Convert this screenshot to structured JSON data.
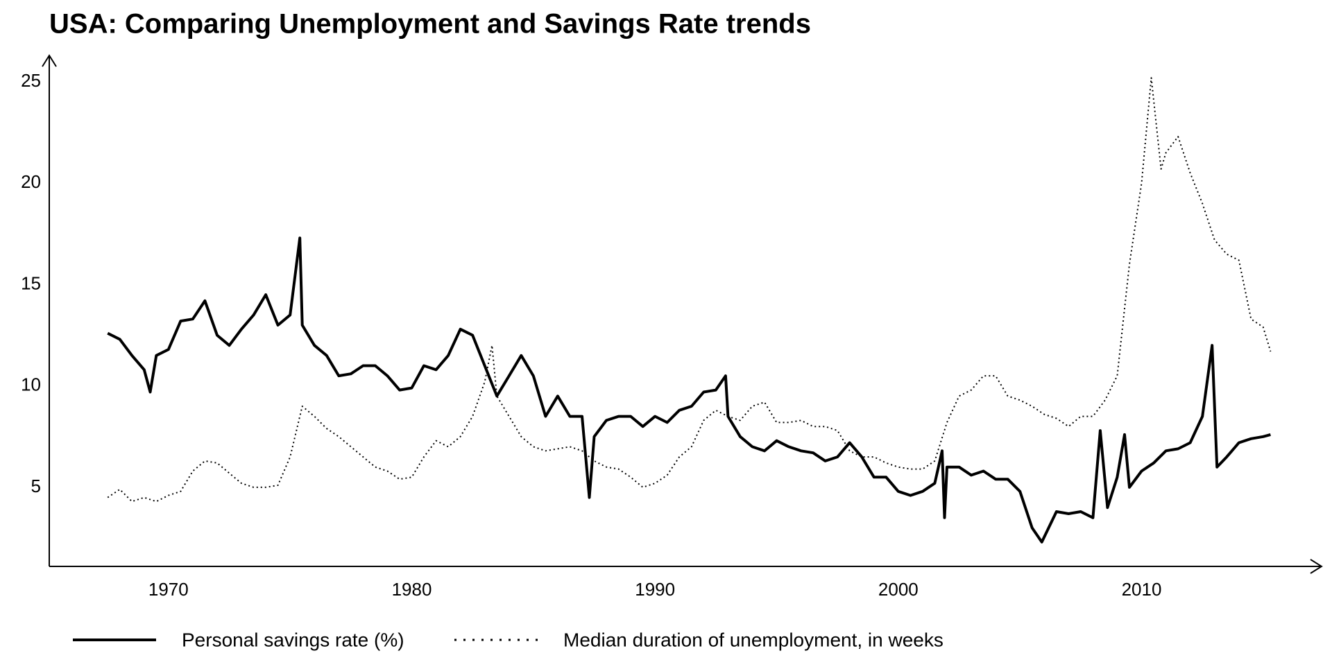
{
  "chart_data": {
    "type": "line",
    "title": "USA: Comparing Unemployment and Savings Rate trends",
    "xlim": [
      1965.1,
      2017.4
    ],
    "xticks": [
      1970,
      1980,
      1990,
      2000,
      2010
    ],
    "ylim": [
      1.1,
      26.3
    ],
    "yticks": [
      5,
      10,
      15,
      20,
      25
    ],
    "grid": false,
    "series": [
      {
        "name": "Personal savings rate (%)",
        "color": "#000000",
        "style": "solid",
        "x": [
          1967.5,
          1968.0,
          1968.5,
          1969.0,
          1969.25,
          1969.5,
          1970.0,
          1970.5,
          1971.0,
          1971.5,
          1972.0,
          1972.5,
          1973.0,
          1973.5,
          1974.0,
          1974.5,
          1975.0,
          1975.4,
          1975.5,
          1976.0,
          1976.5,
          1977.0,
          1977.5,
          1978.0,
          1978.5,
          1979.0,
          1979.5,
          1980.0,
          1980.5,
          1981.0,
          1981.5,
          1982.0,
          1982.5,
          1983.0,
          1983.5,
          1984.0,
          1984.5,
          1985.0,
          1985.5,
          1986.0,
          1986.5,
          1987.0,
          1987.3,
          1987.5,
          1988.0,
          1988.5,
          1989.0,
          1989.5,
          1990.0,
          1990.5,
          1991.0,
          1991.5,
          1992.0,
          1992.5,
          1992.9,
          1993.0,
          1993.5,
          1994.0,
          1994.5,
          1995.0,
          1995.5,
          1996.0,
          1996.5,
          1997.0,
          1997.5,
          1998.0,
          1998.5,
          1999.0,
          1999.5,
          2000.0,
          2000.5,
          2001.0,
          2001.5,
          2001.8,
          2001.9,
          2002.0,
          2002.5,
          2003.0,
          2003.5,
          2004.0,
          2004.5,
          2005.0,
          2005.5,
          2005.9,
          2006.5,
          2007.0,
          2007.5,
          2008.0,
          2008.3,
          2008.6,
          2009.0,
          2009.3,
          2009.5,
          2010.0,
          2010.5,
          2011.0,
          2011.5,
          2012.0,
          2012.5,
          2012.9,
          2013.1,
          2013.5,
          2014.0,
          2014.5,
          2015.0,
          2015.3
        ],
        "values": [
          12.6,
          12.3,
          11.5,
          10.8,
          9.7,
          11.5,
          11.8,
          13.2,
          13.3,
          14.2,
          12.5,
          12.0,
          12.8,
          13.5,
          14.5,
          13.0,
          13.5,
          17.3,
          13.0,
          12.0,
          11.5,
          10.5,
          10.6,
          11.0,
          11.0,
          10.5,
          9.8,
          9.9,
          11.0,
          10.8,
          11.5,
          12.8,
          12.5,
          11.0,
          9.5,
          10.5,
          11.5,
          10.5,
          8.5,
          9.5,
          8.5,
          8.5,
          4.5,
          7.5,
          8.3,
          8.5,
          8.5,
          8.0,
          8.5,
          8.2,
          8.8,
          9.0,
          9.7,
          9.8,
          10.5,
          8.5,
          7.5,
          7.0,
          6.8,
          7.3,
          7.0,
          6.8,
          6.7,
          6.3,
          6.5,
          7.2,
          6.5,
          5.5,
          5.5,
          4.8,
          4.6,
          4.8,
          5.2,
          6.8,
          3.5,
          6.0,
          6.0,
          5.6,
          5.8,
          5.4,
          5.4,
          4.8,
          3.0,
          2.3,
          3.8,
          3.7,
          3.8,
          3.5,
          7.8,
          4.0,
          5.5,
          7.6,
          5.0,
          5.8,
          6.2,
          6.8,
          6.9,
          7.2,
          8.5,
          12.0,
          6.0,
          6.5,
          7.2,
          7.4,
          7.5,
          7.6
        ]
      },
      {
        "name": "Median duration of unemployment, in weeks",
        "color": "#000000",
        "style": "dotted",
        "x": [
          1967.5,
          1968.0,
          1968.5,
          1969.0,
          1969.5,
          1970.0,
          1970.5,
          1971.0,
          1971.5,
          1972.0,
          1972.5,
          1973.0,
          1973.5,
          1974.0,
          1974.5,
          1975.0,
          1975.5,
          1976.0,
          1976.5,
          1977.0,
          1977.5,
          1978.0,
          1978.5,
          1979.0,
          1979.5,
          1980.0,
          1980.5,
          1981.0,
          1981.5,
          1982.0,
          1982.5,
          1983.0,
          1983.3,
          1983.5,
          1984.0,
          1984.5,
          1985.0,
          1985.5,
          1986.0,
          1986.5,
          1987.0,
          1987.5,
          1988.0,
          1988.5,
          1989.0,
          1989.5,
          1990.0,
          1990.5,
          1991.0,
          1991.5,
          1992.0,
          1992.5,
          1993.0,
          1993.5,
          1994.0,
          1994.5,
          1995.0,
          1995.5,
          1996.0,
          1996.5,
          1997.0,
          1997.5,
          1998.0,
          1998.5,
          1999.0,
          1999.5,
          2000.0,
          2000.5,
          2001.0,
          2001.5,
          2002.0,
          2002.5,
          2003.0,
          2003.5,
          2004.0,
          2004.5,
          2005.0,
          2005.5,
          2006.0,
          2006.5,
          2007.0,
          2007.5,
          2008.0,
          2008.5,
          2009.0,
          2009.5,
          2010.0,
          2010.4,
          2010.8,
          2011.0,
          2011.5,
          2012.0,
          2012.5,
          2013.0,
          2013.5,
          2014.0,
          2014.5,
          2015.0,
          2015.3
        ],
        "values": [
          4.5,
          4.9,
          4.3,
          4.5,
          4.3,
          4.6,
          4.8,
          5.8,
          6.3,
          6.2,
          5.7,
          5.2,
          5.0,
          5.0,
          5.1,
          6.5,
          9.0,
          8.5,
          7.9,
          7.5,
          7.0,
          6.5,
          6.0,
          5.8,
          5.4,
          5.5,
          6.5,
          7.3,
          7.0,
          7.5,
          8.5,
          10.2,
          12.0,
          9.5,
          8.5,
          7.5,
          7.0,
          6.8,
          6.9,
          7.0,
          6.8,
          6.3,
          6.0,
          5.9,
          5.5,
          5.0,
          5.2,
          5.6,
          6.5,
          7.0,
          8.3,
          8.8,
          8.5,
          8.3,
          9.0,
          9.2,
          8.2,
          8.2,
          8.3,
          8.0,
          8.0,
          7.8,
          6.8,
          6.5,
          6.5,
          6.2,
          6.0,
          5.9,
          5.9,
          6.3,
          8.2,
          9.5,
          9.8,
          10.5,
          10.5,
          9.5,
          9.3,
          9.0,
          8.6,
          8.4,
          8.0,
          8.5,
          8.5,
          9.3,
          10.5,
          16.0,
          20.0,
          25.2,
          20.7,
          21.5,
          22.3,
          20.5,
          19.0,
          17.2,
          16.5,
          16.2,
          13.3,
          12.9,
          11.7
        ]
      }
    ]
  }
}
